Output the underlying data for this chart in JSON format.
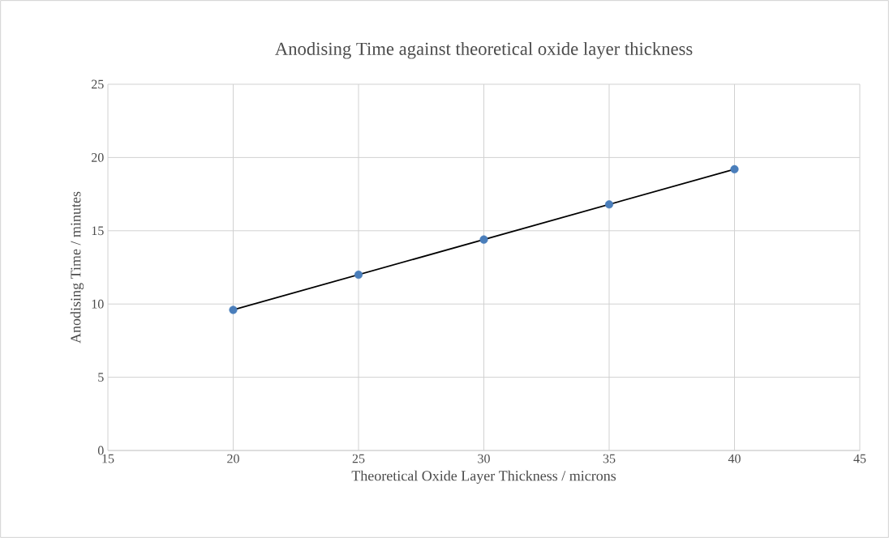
{
  "chart_data": {
    "type": "scatter",
    "title": "Anodising Time against theoretical oxide layer thickness",
    "xlabel": "Theoretical Oxide Layer Thickness / microns",
    "ylabel": "Anodising Time / minutes",
    "x": [
      20,
      25,
      30,
      35,
      40
    ],
    "marker": "circle",
    "grid": true,
    "xlim": [
      15,
      45
    ],
    "ylim": [
      0,
      25
    ],
    "xticks": [
      15,
      20,
      25,
      30,
      35,
      40,
      45
    ],
    "yticks": [
      0,
      5,
      10,
      15,
      20,
      25
    ],
    "series": [
      {
        "color": "#4a7ebb",
        "values": [
          9.6,
          12.0,
          14.4,
          16.8,
          19.2
        ]
      },
      {
        "type": "line",
        "color": "#000000",
        "marker": "none",
        "x": [
          20,
          40
        ],
        "values": [
          9.6,
          19.2
        ]
      }
    ]
  }
}
